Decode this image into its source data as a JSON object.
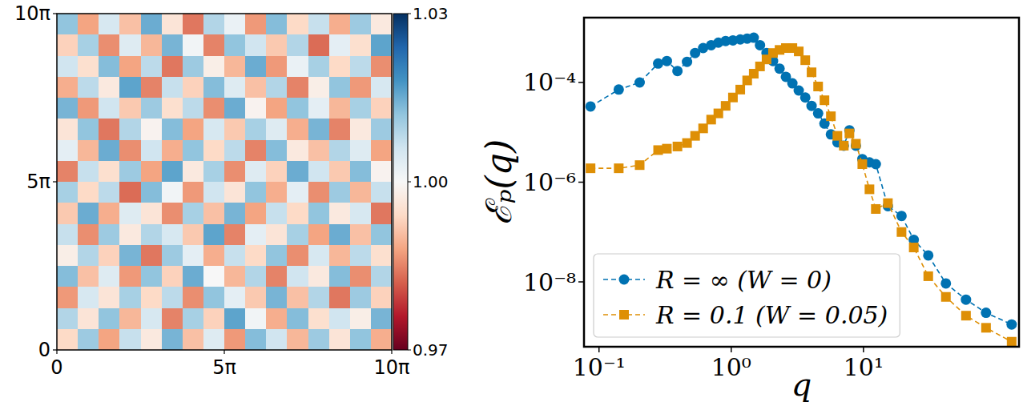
{
  "chart_data": [
    {
      "type": "heatmap",
      "xlim": [
        0,
        31.416
      ],
      "xticks": [
        0,
        {
          "value": 15.708,
          "label": "5π"
        },
        {
          "value": 31.416,
          "label": "10π"
        }
      ],
      "ylim": [
        0,
        31.416
      ],
      "yticks": [
        0,
        {
          "value": 15.708,
          "label": "5π"
        },
        {
          "value": 31.416,
          "label": "10π"
        }
      ],
      "cells": [
        [
          1.012,
          0.988,
          1.005,
          0.991,
          1.015,
          0.996,
          0.984,
          1.009,
          1.002,
          0.987,
          1.013,
          0.994,
          1.007,
          0.989,
          1.011,
          0.997
        ],
        [
          0.993,
          1.01,
          0.986,
          1.004,
          0.99,
          1.014,
          1.001,
          0.985,
          1.012,
          1.006,
          0.992,
          1.009,
          0.983,
          1.003,
          0.995,
          1.016
        ],
        [
          1.006,
          0.995,
          1.013,
          0.988,
          1.008,
          0.984,
          1.011,
          0.998,
          0.99,
          1.015,
          0.987,
          1.002,
          1.01,
          0.994,
          1.008,
          0.986
        ],
        [
          0.989,
          1.008,
          0.997,
          1.016,
          0.985,
          1.007,
          0.993,
          1.013,
          1.004,
          0.991,
          1.009,
          0.985,
          0.998,
          1.012,
          0.987,
          1.005
        ],
        [
          1.014,
          0.987,
          1.006,
          0.992,
          1.011,
          0.995,
          1.008,
          0.986,
          1.015,
          0.999,
          0.988,
          1.012,
          1.003,
          0.99,
          1.01,
          0.993
        ],
        [
          0.996,
          1.012,
          0.984,
          1.009,
          0.999,
          1.013,
          0.988,
          1.005,
          0.992,
          1.01,
          1.004,
          0.989,
          1.014,
          0.985,
          0.997,
          1.011
        ],
        [
          1.003,
          0.99,
          1.015,
          0.986,
          1.006,
          0.989,
          1.012,
          0.994,
          1.008,
          0.985,
          1.013,
          0.997,
          0.991,
          1.009,
          1.004,
          0.988
        ],
        [
          0.985,
          1.007,
          0.995,
          1.011,
          0.988,
          1.016,
          0.997,
          1.01,
          0.986,
          1.004,
          0.993,
          1.015,
          1.006,
          0.992,
          1.013,
          0.999
        ],
        [
          1.01,
          0.994,
          1.008,
          0.983,
          1.013,
          1.001,
          0.987,
          1.006,
          0.996,
          1.012,
          0.989,
          1.003,
          0.986,
          1.011,
          0.99,
          1.007
        ],
        [
          0.992,
          1.015,
          0.989,
          1.004,
          0.996,
          0.986,
          1.01,
          0.991,
          1.014,
          0.988,
          1.007,
          0.994,
          1.012,
          0.997,
          1.005,
          0.984
        ],
        [
          1.007,
          0.986,
          1.011,
          0.997,
          1.009,
          1.005,
          0.992,
          1.016,
          0.985,
          1.003,
          0.996,
          1.01,
          0.988,
          1.015,
          0.991,
          1.012
        ],
        [
          0.998,
          1.009,
          0.993,
          1.014,
          0.984,
          1.011,
          1.003,
          0.989,
          1.007,
          0.994,
          1.012,
          0.986,
          1.005,
          0.99,
          1.008,
          0.995
        ],
        [
          1.013,
          0.991,
          1.004,
          0.987,
          1.012,
          0.993,
          1.015,
          1.0,
          0.99,
          1.009,
          0.985,
          1.006,
          0.997,
          1.013,
          0.986,
          1.009
        ],
        [
          0.987,
          1.005,
          0.996,
          1.01,
          0.994,
          1.008,
          0.986,
          1.012,
          1.003,
          0.992,
          1.014,
          0.991,
          1.009,
          0.984,
          1.011,
          0.993
        ],
        [
          1.009,
          0.996,
          1.012,
          0.99,
          1.005,
          0.985,
          1.01,
          0.993,
          1.016,
          1.001,
          0.989,
          1.013,
          0.995,
          1.006,
          0.998,
          1.014
        ],
        [
          0.994,
          1.011,
          0.988,
          1.007,
          0.997,
          1.014,
          0.991,
          1.004,
          0.987,
          1.013,
          1.006,
          0.99,
          1.011,
          0.996,
          1.012,
          0.989
        ]
      ],
      "colorbar_range": [
        0.97,
        1.03
      ],
      "colorbar_ticks": [
        0.97,
        {
          "value": 1.0,
          "label": "1.00"
        },
        1.03
      ]
    },
    {
      "type": "line",
      "xlabel": "q",
      "ylabel": "ℰₚ(q)",
      "log": true,
      "legend": "lower left",
      "line_style": "dashed",
      "xlim": [
        0.077,
        150
      ],
      "xticks": [
        {
          "value": 0.1,
          "label": "10⁻¹"
        },
        {
          "value": 1,
          "label": "10⁰"
        },
        {
          "value": 10,
          "label": "10¹"
        }
      ],
      "ylim": [
        5e-10,
        0.002
      ],
      "yticks": [
        {
          "value": 1e-08,
          "label": "10⁻⁸"
        },
        {
          "value": 1e-06,
          "label": "10⁻⁶"
        },
        {
          "value": 0.0001,
          "label": "10⁻⁴"
        }
      ],
      "x": [
        0.0863,
        0.141,
        0.203,
        0.28,
        0.326,
        0.392,
        0.463,
        0.533,
        0.613,
        0.705,
        0.799,
        0.907,
        1.03,
        1.17,
        1.32,
        1.48,
        1.65,
        1.85,
        2.07,
        2.32,
        2.59,
        2.9,
        3.24,
        3.63,
        4.05,
        4.54,
        5.07,
        5.67,
        6.35,
        7.1,
        7.83,
        8.76,
        9.8,
        11.1,
        12.4,
        15.3,
        19.4,
        24.0,
        30.9,
        42.0,
        59.6,
        84.5,
        132
      ],
      "series": [
        {
          "name": "R = ∞ (W = 0)",
          "color": "#0072b2",
          "marker": "circle",
          "values": [
            3.3e-05,
            7.2e-05,
            0.0001,
            0.00024,
            0.00027,
            0.00017,
            0.00026,
            0.00039,
            0.00049,
            0.00056,
            0.00063,
            0.00068,
            0.0007,
            0.00073,
            0.00076,
            0.00079,
            0.00056,
            0.00039,
            0.00027,
            0.00019,
            0.00013,
            9.6e-05,
            6.9e-05,
            5e-05,
            3.4e-05,
            2.4e-05,
            1.5e-05,
            9.1e-06,
            6.3e-06,
            5.4e-06,
            1.1e-05,
            5.4e-06,
            2.9e-06,
            2.5e-06,
            2.3e-06,
            3.3e-07,
            2.1e-07,
            7e-08,
            3.4e-08,
            9.3e-09,
            4.4e-09,
            2.4e-09,
            1.4e-09
          ]
        },
        {
          "name": "R = 0.1 (W = 0.05)",
          "color": "#de8f05",
          "marker": "square",
          "values": [
            1.9e-06,
            1.9e-06,
            2.2e-06,
            4.4e-06,
            4.7e-06,
            5.2e-06,
            6.1e-06,
            8.5e-06,
            1.2e-05,
            1.8e-05,
            2.4e-05,
            3.4e-05,
            5e-05,
            7.2e-05,
            0.00011,
            0.00015,
            0.00021,
            0.00029,
            0.00039,
            0.00045,
            0.00049,
            0.00049,
            0.00042,
            0.00028,
            0.00016,
            8.3e-05,
            4.4e-05,
            2.1e-05,
            8.5e-06,
            5.4e-06,
            9.5e-06,
            5.9e-06,
            2.3e-06,
            7.2e-07,
            2.9e-07,
            3.8e-07,
            1e-07,
            4.9e-08,
            1.3e-08,
            5e-09,
            2.1e-09,
            1.2e-09,
            6.3e-10
          ]
        }
      ]
    }
  ]
}
